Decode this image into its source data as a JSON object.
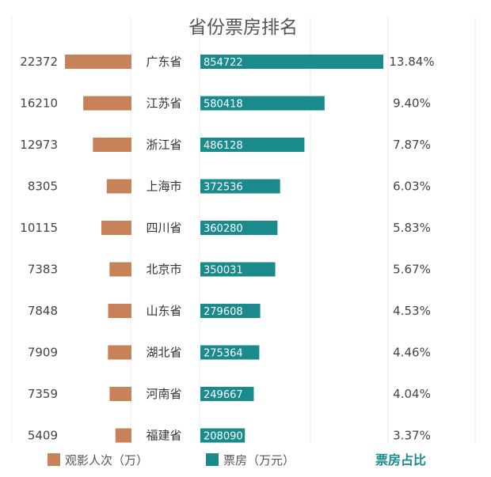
{
  "chart_data": {
    "type": "bar",
    "title": "省份票房排名",
    "categories": [
      "广东省",
      "江苏省",
      "浙江省",
      "上海市",
      "四川省",
      "北京市",
      "山东省",
      "湖北省",
      "河南省",
      "福建省"
    ],
    "series": [
      {
        "name": "观影人次（万）",
        "values": [
          22372,
          16210,
          12973,
          8305,
          10115,
          7383,
          7848,
          7909,
          7359,
          5409
        ]
      },
      {
        "name": "票房（万元）",
        "values": [
          854722,
          580418,
          486128,
          372536,
          360280,
          350031,
          279608,
          275364,
          249667,
          208090
        ]
      }
    ],
    "share_label": "票房占比",
    "share_values": [
      "13.84%",
      "9.40%",
      "7.87%",
      "6.03%",
      "5.83%",
      "5.67%",
      "4.53%",
      "4.46%",
      "4.04%",
      "3.37%"
    ],
    "colors": {
      "attendance": "#c8825a",
      "boxoffice": "#1a8a8c",
      "share": "#1a8a8c"
    },
    "grid": false,
    "legend_position": "bottom"
  }
}
